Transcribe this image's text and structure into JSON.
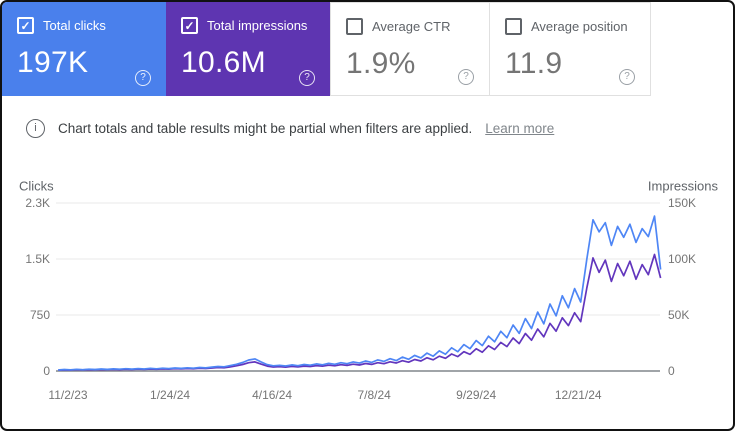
{
  "colors": {
    "clicks_card_bg": "#4a80ec",
    "impressions_card_bg": "#5e35b1",
    "clicks_line": "#4e86f5",
    "impressions_line": "#6236bd",
    "white_card_bg": "#ffffff"
  },
  "icons": {
    "check": "✓",
    "help": "?",
    "info": "i"
  },
  "cards": [
    {
      "label": "Total clicks",
      "value": "197K",
      "checked": true,
      "bg": "#4a80ec",
      "help_icon": "help-icon"
    },
    {
      "label": "Total impressions",
      "value": "10.6M",
      "checked": true,
      "bg": "#5e35b1",
      "help_icon": "help-icon"
    },
    {
      "label": "Average CTR",
      "value": "1.9%",
      "checked": false,
      "bg": "#ffffff",
      "help_icon": "help-icon"
    },
    {
      "label": "Average position",
      "value": "11.9",
      "checked": false,
      "bg": "#ffffff",
      "help_icon": "help-icon"
    }
  ],
  "banner": {
    "icon": "info-icon",
    "text": "Chart totals and table results might be partial when filters are applied.",
    "link": "Learn more"
  },
  "chart_data": {
    "type": "line",
    "grid": "horizontal",
    "legend": "none",
    "x_axis": {
      "unit": "date",
      "day0_date": "11/2/23",
      "tick_days": [
        0,
        83,
        166,
        249,
        332,
        415
      ],
      "tick_labels": [
        "11/2/23",
        "1/24/24",
        "4/16/24",
        "7/8/24",
        "9/29/24",
        "12/21/24"
      ]
    },
    "left_axis": {
      "label": "Clicks",
      "max": 2300,
      "ticks": [
        0,
        750,
        1500,
        2300
      ],
      "tick_labels": [
        "0",
        "750",
        "1.5K",
        "2.3K"
      ]
    },
    "right_axis": {
      "label": "Impressions",
      "max": 150000,
      "ticks": [
        0,
        50000,
        100000,
        150000
      ],
      "tick_labels": [
        "0",
        "50K",
        "100K",
        "150K"
      ]
    },
    "days": [
      -8,
      -3,
      2,
      7,
      12,
      17,
      22,
      27,
      32,
      37,
      42,
      47,
      52,
      57,
      62,
      67,
      72,
      77,
      82,
      87,
      92,
      97,
      102,
      107,
      112,
      117,
      122,
      127,
      132,
      137,
      142,
      147,
      152,
      157,
      162,
      167,
      172,
      177,
      182,
      187,
      192,
      197,
      202,
      207,
      212,
      217,
      222,
      227,
      232,
      237,
      242,
      247,
      252,
      257,
      262,
      267,
      272,
      277,
      282,
      287,
      292,
      297,
      302,
      307,
      312,
      317,
      322,
      327,
      332,
      337,
      342,
      347,
      352,
      357,
      362,
      367,
      372,
      377,
      382,
      387,
      392,
      397,
      402,
      407,
      412,
      417,
      422,
      427,
      432,
      437,
      442,
      447,
      452,
      457,
      462,
      467,
      472,
      477,
      482
    ],
    "series": [
      {
        "name": "Clicks",
        "axis": "left",
        "color": "#4e86f5",
        "values": [
          14,
          20,
          16,
          23,
          18,
          25,
          20,
          27,
          22,
          29,
          24,
          31,
          26,
          33,
          28,
          35,
          30,
          38,
          33,
          41,
          36,
          44,
          39,
          48,
          43,
          54,
          62,
          57,
          74,
          92,
          116,
          150,
          165,
          124,
          87,
          71,
          78,
          69,
          83,
          73,
          89,
          79,
          97,
          85,
          106,
          92,
          114,
          100,
          125,
          108,
          137,
          118,
          152,
          131,
          169,
          143,
          190,
          160,
          213,
          180,
          245,
          203,
          275,
          230,
          318,
          264,
          362,
          305,
          418,
          348,
          477,
          400,
          543,
          456,
          630,
          515,
          718,
          580,
          806,
          645,
          917,
          755,
          1030,
          865,
          1128,
          945,
          1530,
          2070,
          1905,
          2030,
          1720,
          1980,
          1830,
          2010,
          1760,
          1950,
          1840,
          2120,
          1390
        ]
      },
      {
        "name": "Impressions",
        "axis": "right",
        "color": "#6236bd",
        "values": [
          700,
          1000,
          850,
          1150,
          950,
          1250,
          1050,
          1350,
          1150,
          1450,
          1250,
          1550,
          1350,
          1650,
          1450,
          1750,
          1550,
          1900,
          1700,
          2050,
          1850,
          2200,
          2000,
          2400,
          2200,
          2700,
          3100,
          2900,
          3700,
          4600,
          5800,
          7400,
          8100,
          6200,
          4400,
          3600,
          3900,
          3500,
          4100,
          3700,
          4400,
          4000,
          4800,
          4300,
          5200,
          4600,
          5600,
          5000,
          6100,
          5400,
          6700,
          5900,
          7400,
          6500,
          8200,
          7100,
          9200,
          7900,
          10300,
          8900,
          11800,
          10000,
          13200,
          11300,
          15200,
          12900,
          17200,
          14800,
          19800,
          16800,
          22500,
          19200,
          25500,
          21800,
          29500,
          24500,
          33500,
          27500,
          37500,
          30500,
          42500,
          35500,
          47500,
          40500,
          52000,
          44000,
          74000,
          101000,
          88000,
          99000,
          80000,
          96000,
          85000,
          98000,
          82000,
          95000,
          86000,
          104000,
          83000
        ]
      }
    ]
  }
}
